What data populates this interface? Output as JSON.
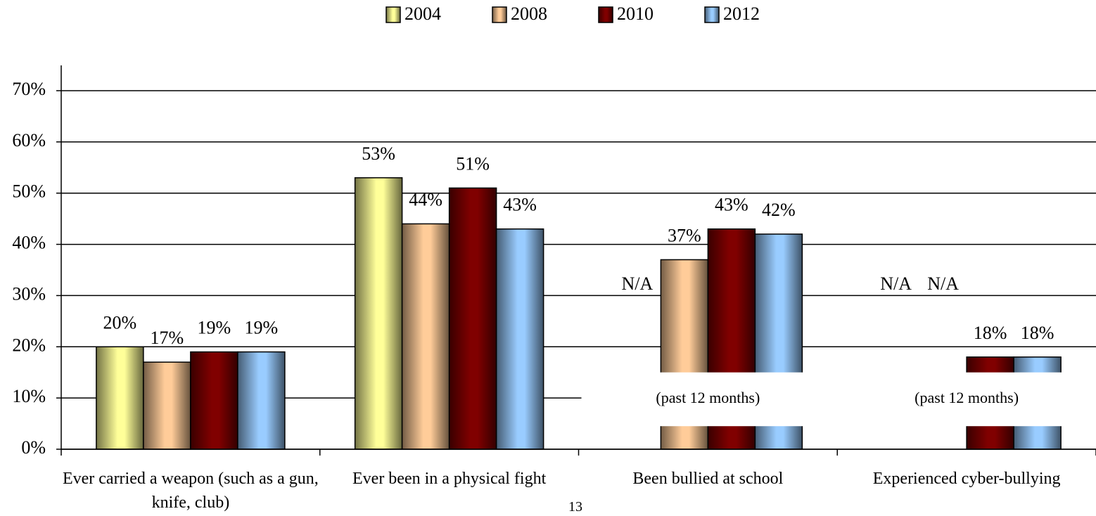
{
  "chart_data": {
    "type": "bar",
    "categories": [
      "Ever carried a weapon (such as a gun, knife, club)",
      "Ever been in a physical fight",
      "Been bullied at school",
      "Experienced cyber-bullying"
    ],
    "series": [
      {
        "name": "2004",
        "color": "#ffff99",
        "values": [
          20,
          53,
          null,
          null
        ],
        "value_labels": [
          "20%",
          "53%",
          "N/A",
          "N/A"
        ]
      },
      {
        "name": "2008",
        "color": "#ffcc99",
        "values": [
          17,
          44,
          37,
          null
        ],
        "value_labels": [
          "17%",
          "44%",
          "37%",
          "N/A"
        ]
      },
      {
        "name": "2010",
        "color": "#800000",
        "values": [
          19,
          51,
          43,
          18
        ],
        "value_labels": [
          "19%",
          "51%",
          "43%",
          "18%"
        ]
      },
      {
        "name": "2012",
        "color": "#99ccff",
        "values": [
          19,
          43,
          42,
          18
        ],
        "value_labels": [
          "19%",
          "43%",
          "42%",
          "18%"
        ]
      }
    ],
    "ylim": [
      0,
      70
    ],
    "yticks": [
      {
        "value": 0,
        "label": "0%"
      },
      {
        "value": 10,
        "label": "10%"
      },
      {
        "value": 20,
        "label": "20%"
      },
      {
        "value": 30,
        "label": "30%"
      },
      {
        "value": 40,
        "label": "40%"
      },
      {
        "value": 50,
        "label": "50%"
      },
      {
        "value": 60,
        "label": "60%"
      },
      {
        "value": 70,
        "label": "70%"
      }
    ],
    "grid": true,
    "legend": "top",
    "annotations": [
      "(past 12 months)",
      "(past 12 months)"
    ]
  },
  "footer": {
    "page_number": "13"
  }
}
